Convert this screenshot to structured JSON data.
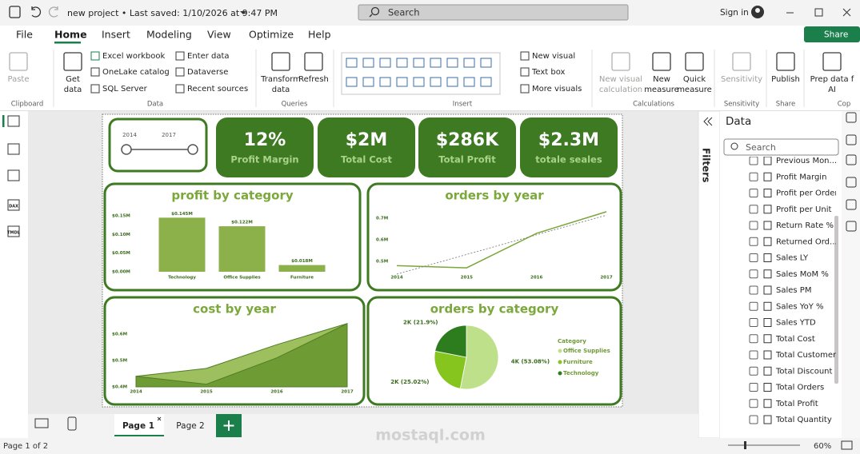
{
  "titlebar": {
    "document": "new project  •  Last saved: 1/10/2026 at 9:47 PM",
    "search": "Search",
    "sign_in": "Sign in"
  },
  "ribbon": {
    "tabs": [
      "File",
      "Home",
      "Insert",
      "Modeling",
      "View",
      "Optimize",
      "Help"
    ],
    "share": "Share",
    "buttons": [
      {
        "lines": [
          "Paste"
        ]
      },
      {
        "lines": [
          "Get",
          "data"
        ]
      },
      {
        "lines": [
          "Transform",
          "data"
        ]
      },
      {
        "lines": [
          "Refresh"
        ]
      },
      {
        "lines": [
          "New visual",
          "calculation"
        ]
      },
      {
        "lines": [
          "New",
          "measure"
        ]
      },
      {
        "lines": [
          "Quick",
          "measure"
        ]
      },
      {
        "lines": [
          "Sensitivity"
        ]
      },
      {
        "lines": [
          "Publish"
        ]
      },
      {
        "lines": [
          "Prep data f",
          "AI"
        ]
      }
    ],
    "small_buttons": [
      "Excel workbook",
      "OneLake catalog",
      "SQL Server",
      "Enter data",
      "Dataverse",
      "Recent sources",
      "New visual",
      "Text box",
      "More visuals"
    ],
    "groups": [
      "Clipboard",
      "Data",
      "Queries",
      "Insert",
      "Calculations",
      "Sensitivity",
      "Share",
      "Cop"
    ]
  },
  "sidebar_labels": [
    "DAX",
    "TMDL"
  ],
  "report": {
    "slicer": {
      "start": "2014",
      "end": "2017"
    },
    "cards": [
      {
        "value": "12%",
        "label": "Profit Margin"
      },
      {
        "value": "$2M",
        "label": "Total Cost"
      },
      {
        "value": "$286K",
        "label": "Total Profit"
      },
      {
        "value": "$2.3M",
        "label": "totale seales"
      }
    ],
    "charts": [
      {
        "type": "bar",
        "title": "profit by category",
        "categories": [
          "Technology",
          "Office Supplies",
          "Furniture"
        ],
        "values": [
          0.145,
          0.122,
          0.018
        ],
        "value_labels": [
          "$0.145M",
          "$0.122M",
          "$0.018M"
        ],
        "color": "#8cb04a",
        "ylim": [
          0,
          0.15
        ],
        "yticks": [
          {
            "value": 0,
            "label": "$0.00M"
          },
          {
            "value": 0.05,
            "label": "$0.05M"
          },
          {
            "value": 0.1,
            "label": "$0.10M"
          },
          {
            "value": 0.15,
            "label": "$0.15M"
          }
        ]
      },
      {
        "type": "line",
        "title": "orders by year",
        "x": [
          2014,
          2015,
          2016,
          2017
        ],
        "values": [
          0.48,
          0.47,
          0.63,
          0.73
        ],
        "color": "#7aa63a",
        "trendline": true,
        "xlim": [
          2014,
          2017
        ],
        "xticks": [
          2014,
          2015,
          2016,
          2017
        ],
        "ylim": [
          0.45,
          0.75
        ],
        "yticks": [
          {
            "value": 0.5,
            "label": "0.5M"
          },
          {
            "value": 0.6,
            "label": "0.6M"
          },
          {
            "value": 0.7,
            "label": "0.7M"
          }
        ]
      },
      {
        "type": "area",
        "title": "cost by year",
        "x": [
          2014,
          2015,
          2016,
          2017
        ],
        "series": [
          {
            "color": "#9dbf5e",
            "values": [
              0.44,
              0.47,
              0.56,
              0.64
            ]
          },
          {
            "color": "#6f9b34",
            "values": [
              0.44,
              0.41,
              0.51,
              0.64
            ]
          }
        ],
        "xlim": [
          2014,
          2017
        ],
        "xticks": [
          2014,
          2015,
          2016,
          2017
        ],
        "ylim": [
          0.4,
          0.65
        ],
        "yticks": [
          {
            "value": 0.4,
            "label": "$0.4M"
          },
          {
            "value": 0.5,
            "label": "$0.5M"
          },
          {
            "value": 0.6,
            "label": "$0.6M"
          }
        ]
      },
      {
        "type": "pie",
        "title": "orders by category",
        "legend_title": "Category",
        "categories": [
          "Office Supplies",
          "Furniture",
          "Technology"
        ],
        "values": [
          53.08,
          25.02,
          21.9
        ],
        "value_labels": [
          "4K (53.08%)",
          "2K (25.02%)",
          "2K (21.9%)"
        ],
        "colors": [
          "#bfe08a",
          "#86c41e",
          "#2d7d1f"
        ]
      }
    ]
  },
  "filters": "Filters",
  "data_pane": {
    "title": "Data",
    "search": "Search",
    "fields": [
      "Previous Mon...",
      "Profit Margin",
      "Profit per Order",
      "Profit per Unit",
      "Return Rate %",
      "Returned Ord...",
      "Sales LY",
      "Sales MoM %",
      "Sales PM",
      "Sales YoY %",
      "Sales YTD",
      "Total Cost",
      "Total Customers",
      "Total Discount",
      "Total Orders",
      "Total Profit",
      "Total Quantity"
    ]
  },
  "pages": [
    "Page 1",
    "Page 2"
  ],
  "status": {
    "page": "Page 1 of 2",
    "zoom": "60%"
  },
  "watermark": "mostaql.com"
}
